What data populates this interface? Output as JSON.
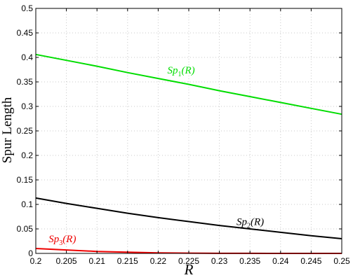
{
  "chart_data": {
    "type": "line",
    "title": "",
    "xlabel": "R",
    "ylabel": "Spur Length",
    "xlim": [
      0.2,
      0.25
    ],
    "ylim": [
      0,
      0.5
    ],
    "grid": true,
    "x_ticks": [
      "0.2",
      "0.205",
      "0.21",
      "0.215",
      "0.22",
      "0.225",
      "0.23",
      "0.235",
      "0.24",
      "0.245",
      "0.25"
    ],
    "y_ticks": [
      "0",
      "0.05",
      "0.1",
      "0.15",
      "0.2",
      "0.25",
      "0.3",
      "0.35",
      "0.4",
      "0.45",
      "0.5"
    ],
    "series": [
      {
        "name": "Sp1(R)",
        "label_base": "Sp",
        "label_sub": "1",
        "label_tail": "(R)",
        "color": "#00dd00",
        "x": [
          0.2,
          0.205,
          0.21,
          0.215,
          0.22,
          0.225,
          0.23,
          0.235,
          0.24,
          0.245,
          0.25
        ],
        "y": [
          0.406,
          0.394,
          0.382,
          0.369,
          0.357,
          0.345,
          0.332,
          0.32,
          0.308,
          0.296,
          0.284
        ]
      },
      {
        "name": "Sp2(R)",
        "label_base": "Sp",
        "label_sub": "2",
        "label_tail": "(R)",
        "color": "#000000",
        "x": [
          0.2,
          0.205,
          0.21,
          0.215,
          0.22,
          0.225,
          0.23,
          0.235,
          0.24,
          0.245,
          0.25
        ],
        "y": [
          0.113,
          0.102,
          0.092,
          0.082,
          0.073,
          0.065,
          0.057,
          0.05,
          0.043,
          0.036,
          0.03
        ]
      },
      {
        "name": "Sp3(R)",
        "label_base": "Sp",
        "label_sub": "3",
        "label_tail": "(R)",
        "color": "#ee0000",
        "x": [
          0.2,
          0.205,
          0.21,
          0.215,
          0.22,
          0.225,
          0.23,
          0.235,
          0.24,
          0.245,
          0.25
        ],
        "y": [
          0.01,
          0.007,
          0.004,
          0.0025,
          0.001,
          0.0005,
          0.0002,
          0.0001,
          0,
          0,
          0
        ]
      }
    ],
    "annotations": [
      {
        "series_index": 0,
        "x": 0.2215,
        "y": 0.367
      },
      {
        "series_index": 1,
        "x": 0.2328,
        "y": 0.058
      },
      {
        "series_index": 2,
        "x": 0.2021,
        "y": 0.023
      }
    ]
  }
}
